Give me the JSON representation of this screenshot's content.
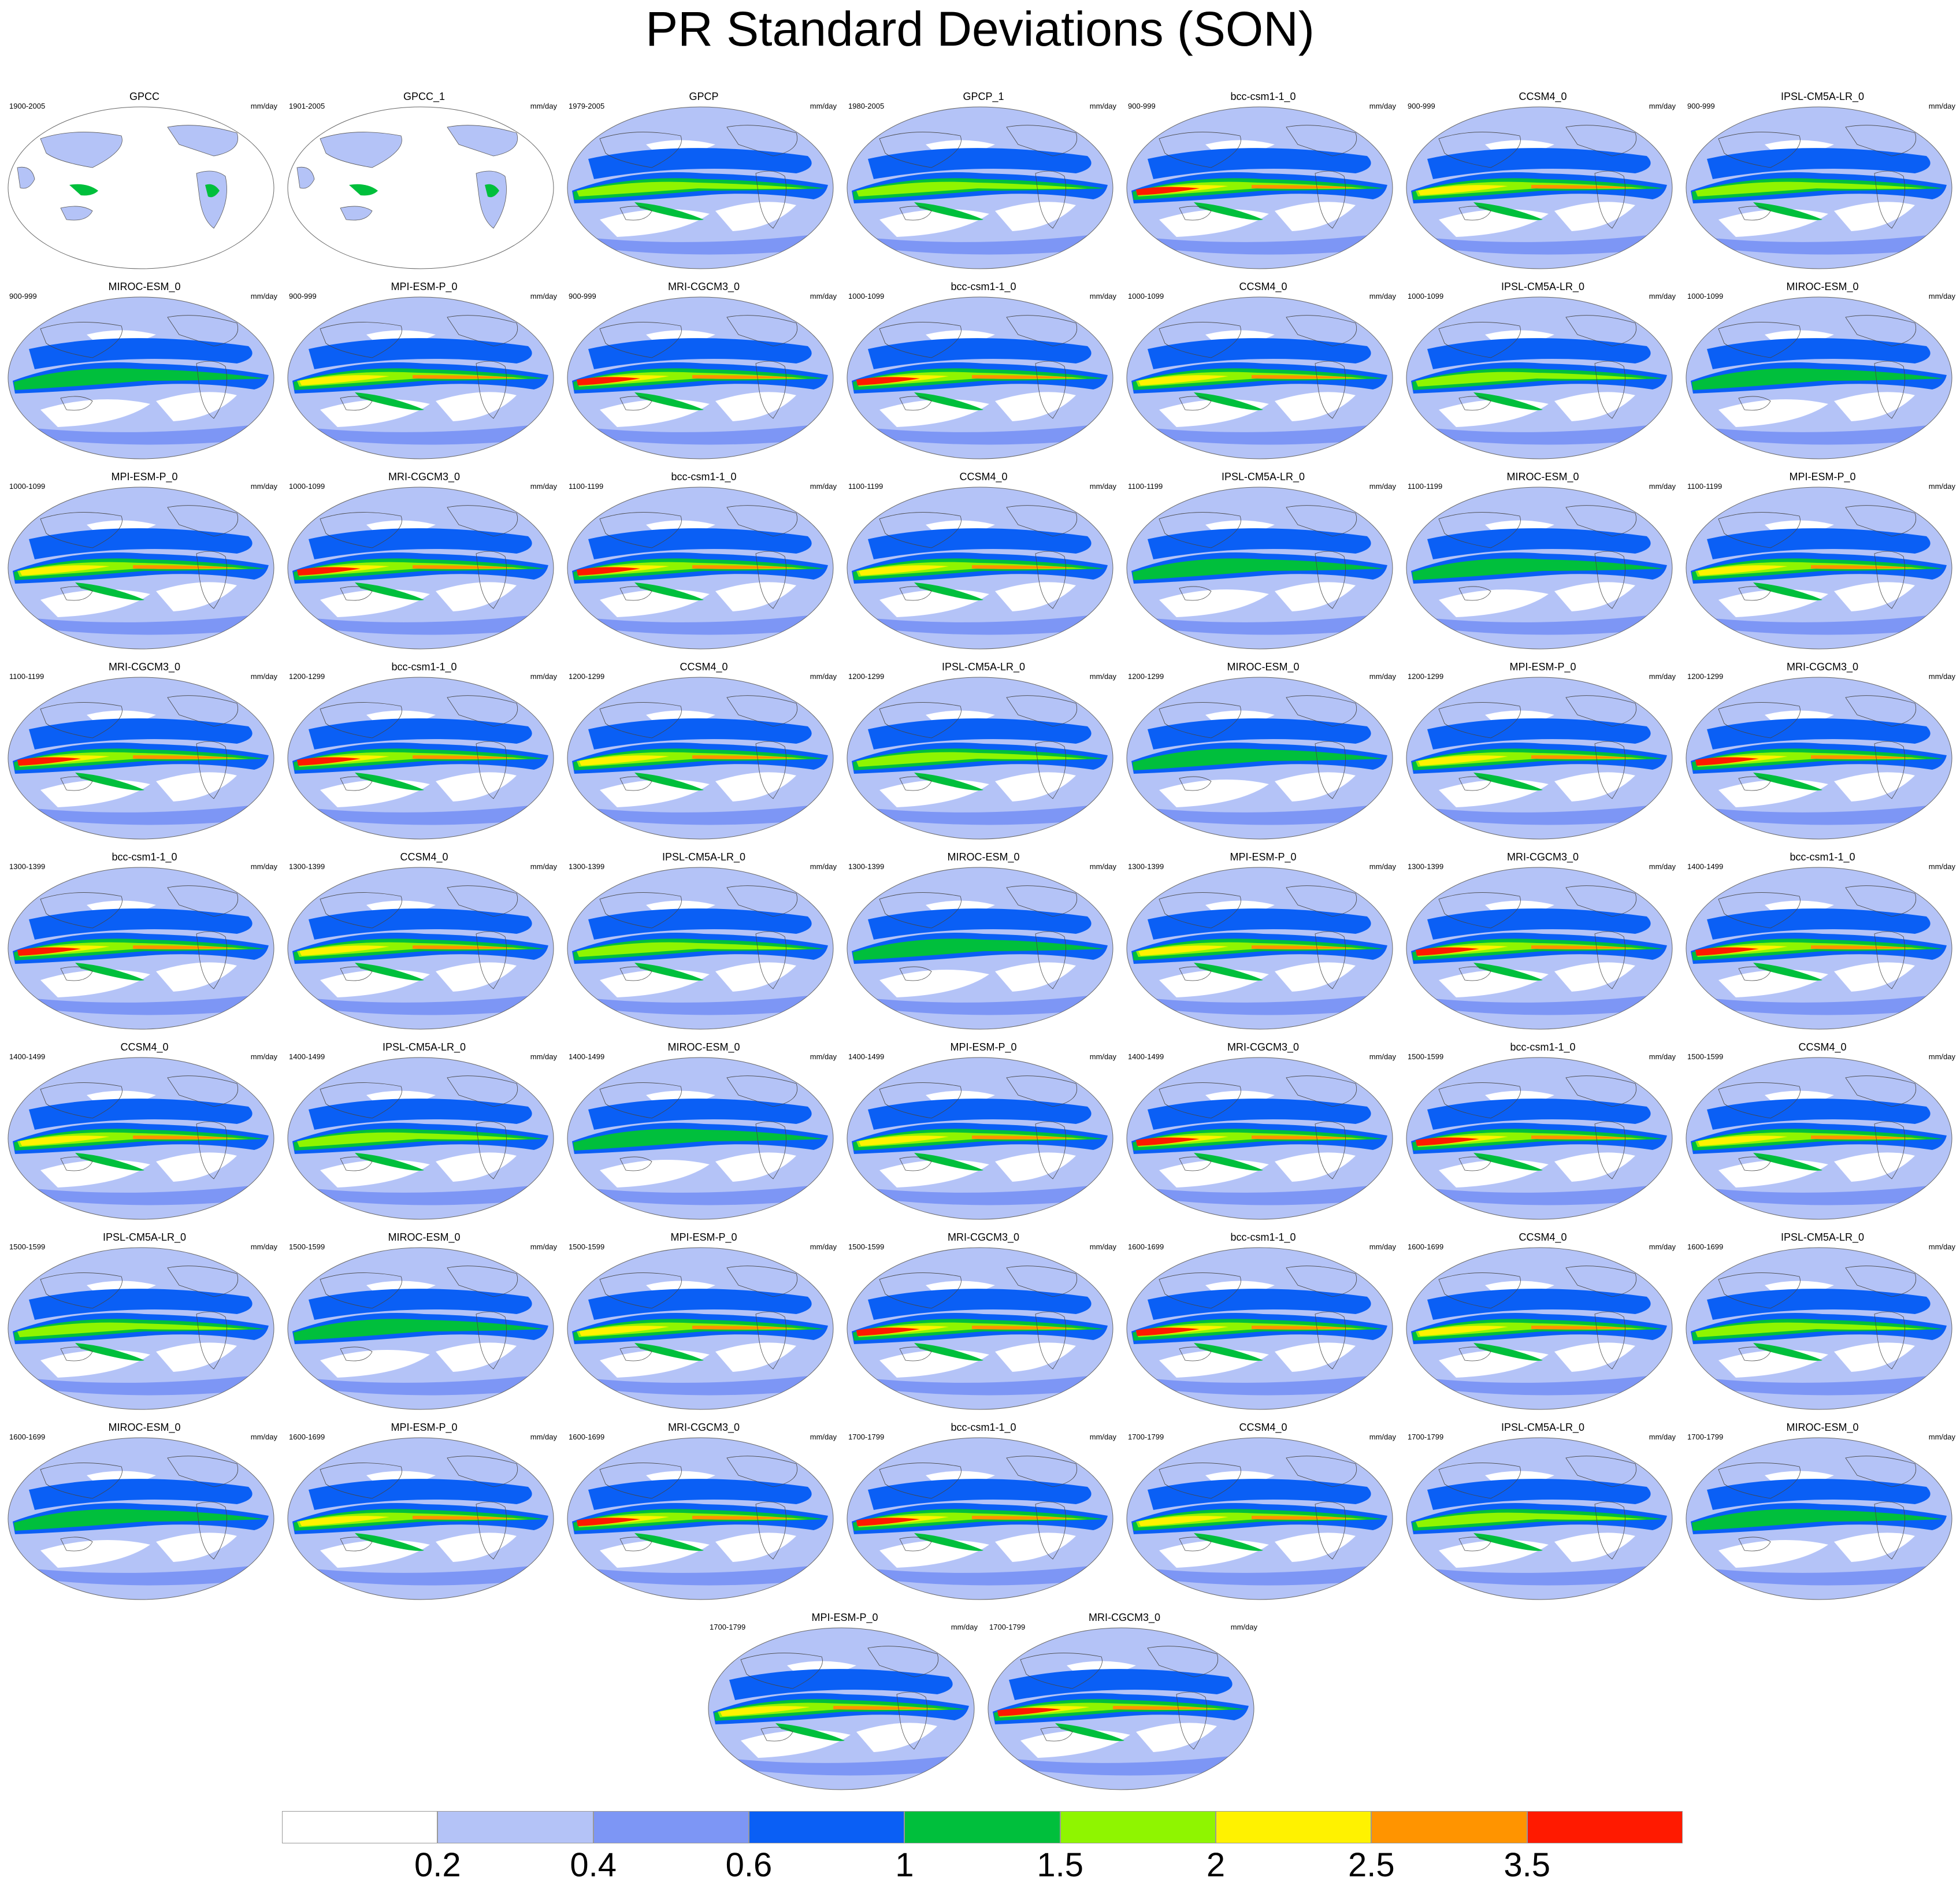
{
  "title": "PR Standard Deviations (SON)",
  "units": "mm/day",
  "chart_data": {
    "type": "map-grid",
    "title": "PR Standard Deviations (SON)",
    "units": "mm/day",
    "colorbar": {
      "colors": [
        "#ffffff",
        "#b4c3f7",
        "#7d96f5",
        "#0a5ff5",
        "#00bf3c",
        "#8ff500",
        "#fff200",
        "#ff9400",
        "#ff1a00"
      ],
      "labels": [
        "0.2",
        "0.4",
        "0.6",
        "1",
        "1.5",
        "2",
        "2.5",
        "3.5"
      ]
    },
    "panels": [
      {
        "name": "GPCC",
        "period": "1900-2005",
        "intensity": 0,
        "land": true
      },
      {
        "name": "GPCC_1",
        "period": "1901-2005",
        "intensity": 0,
        "land": true
      },
      {
        "name": "GPCP",
        "period": "1979-2005",
        "intensity": 2
      },
      {
        "name": "GPCP_1",
        "period": "1980-2005",
        "intensity": 2
      },
      {
        "name": "bcc-csm1-1_0",
        "period": "900-999",
        "intensity": 4
      },
      {
        "name": "CCSM4_0",
        "period": "900-999",
        "intensity": 3
      },
      {
        "name": "IPSL-CM5A-LR_0",
        "period": "900-999",
        "intensity": 2
      },
      {
        "name": "MIROC-ESM_0",
        "period": "900-999",
        "intensity": 1
      },
      {
        "name": "MPI-ESM-P_0",
        "period": "900-999",
        "intensity": 3
      },
      {
        "name": "MRI-CGCM3_0",
        "period": "900-999",
        "intensity": 4
      },
      {
        "name": "bcc-csm1-1_0",
        "period": "1000-1099",
        "intensity": 4
      },
      {
        "name": "CCSM4_0",
        "period": "1000-1099",
        "intensity": 3
      },
      {
        "name": "IPSL-CM5A-LR_0",
        "period": "1000-1099",
        "intensity": 2
      },
      {
        "name": "MIROC-ESM_0",
        "period": "1000-1099",
        "intensity": 1
      },
      {
        "name": "MPI-ESM-P_0",
        "period": "1000-1099",
        "intensity": 3
      },
      {
        "name": "MRI-CGCM3_0",
        "period": "1000-1099",
        "intensity": 4
      },
      {
        "name": "bcc-csm1-1_0",
        "period": "1100-1199",
        "intensity": 4
      },
      {
        "name": "CCSM4_0",
        "period": "1100-1199",
        "intensity": 3
      },
      {
        "name": "IPSL-CM5A-LR_0",
        "period": "1100-1199",
        "intensity": 1
      },
      {
        "name": "MIROC-ESM_0",
        "period": "1100-1199",
        "intensity": 1
      },
      {
        "name": "MPI-ESM-P_0",
        "period": "1100-1199",
        "intensity": 3
      },
      {
        "name": "MRI-CGCM3_0",
        "period": "1100-1199",
        "intensity": 4
      },
      {
        "name": "bcc-csm1-1_0",
        "period": "1200-1299",
        "intensity": 4
      },
      {
        "name": "CCSM4_0",
        "period": "1200-1299",
        "intensity": 3
      },
      {
        "name": "IPSL-CM5A-LR_0",
        "period": "1200-1299",
        "intensity": 2
      },
      {
        "name": "MIROC-ESM_0",
        "period": "1200-1299",
        "intensity": 1
      },
      {
        "name": "MPI-ESM-P_0",
        "period": "1200-1299",
        "intensity": 3
      },
      {
        "name": "MRI-CGCM3_0",
        "period": "1200-1299",
        "intensity": 4
      },
      {
        "name": "bcc-csm1-1_0",
        "period": "1300-1399",
        "intensity": 4
      },
      {
        "name": "CCSM4_0",
        "period": "1300-1399",
        "intensity": 3
      },
      {
        "name": "IPSL-CM5A-LR_0",
        "period": "1300-1399",
        "intensity": 2
      },
      {
        "name": "MIROC-ESM_0",
        "period": "1300-1399",
        "intensity": 1
      },
      {
        "name": "MPI-ESM-P_0",
        "period": "1300-1399",
        "intensity": 3
      },
      {
        "name": "MRI-CGCM3_0",
        "period": "1300-1399",
        "intensity": 4
      },
      {
        "name": "bcc-csm1-1_0",
        "period": "1400-1499",
        "intensity": 4
      },
      {
        "name": "CCSM4_0",
        "period": "1400-1499",
        "intensity": 3
      },
      {
        "name": "IPSL-CM5A-LR_0",
        "period": "1400-1499",
        "intensity": 2
      },
      {
        "name": "MIROC-ESM_0",
        "period": "1400-1499",
        "intensity": 1
      },
      {
        "name": "MPI-ESM-P_0",
        "period": "1400-1499",
        "intensity": 3
      },
      {
        "name": "MRI-CGCM3_0",
        "period": "1400-1499",
        "intensity": 4
      },
      {
        "name": "bcc-csm1-1_0",
        "period": "1500-1599",
        "intensity": 4
      },
      {
        "name": "CCSM4_0",
        "period": "1500-1599",
        "intensity": 3
      },
      {
        "name": "IPSL-CM5A-LR_0",
        "period": "1500-1599",
        "intensity": 2
      },
      {
        "name": "MIROC-ESM_0",
        "period": "1500-1599",
        "intensity": 1
      },
      {
        "name": "MPI-ESM-P_0",
        "period": "1500-1599",
        "intensity": 3
      },
      {
        "name": "MRI-CGCM3_0",
        "period": "1500-1599",
        "intensity": 4
      },
      {
        "name": "bcc-csm1-1_0",
        "period": "1600-1699",
        "intensity": 4
      },
      {
        "name": "CCSM4_0",
        "period": "1600-1699",
        "intensity": 3
      },
      {
        "name": "IPSL-CM5A-LR_0",
        "period": "1600-1699",
        "intensity": 2
      },
      {
        "name": "MIROC-ESM_0",
        "period": "1600-1699",
        "intensity": 1
      },
      {
        "name": "MPI-ESM-P_0",
        "period": "1600-1699",
        "intensity": 3
      },
      {
        "name": "MRI-CGCM3_0",
        "period": "1600-1699",
        "intensity": 4
      },
      {
        "name": "bcc-csm1-1_0",
        "period": "1700-1799",
        "intensity": 4
      },
      {
        "name": "CCSM4_0",
        "period": "1700-1799",
        "intensity": 3
      },
      {
        "name": "IPSL-CM5A-LR_0",
        "period": "1700-1799",
        "intensity": 2
      },
      {
        "name": "MIROC-ESM_0",
        "period": "1700-1799",
        "intensity": 1
      },
      {
        "name": "MPI-ESM-P_0",
        "period": "1700-1799",
        "intensity": 3
      },
      {
        "name": "MRI-CGCM3_0",
        "period": "1700-1799",
        "intensity": 4
      }
    ]
  }
}
